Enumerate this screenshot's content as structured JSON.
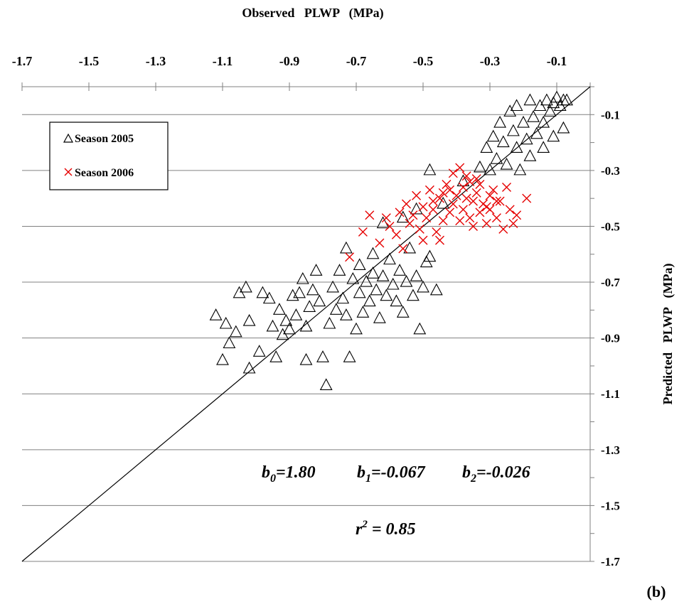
{
  "chart_data": {
    "type": "scatter",
    "xlabel": "Observed   PLWP   (MPa)",
    "ylabel": "Predicted   PLWP   (MPa)",
    "panel_label": "(b)",
    "xlim": [
      -1.7,
      0
    ],
    "ylim": [
      -1.7,
      0
    ],
    "x_ticks": [
      "-1.7",
      "-1.5",
      "-1.3",
      "-1.1",
      "-0.9",
      "-0.7",
      "-0.5",
      "-0.3",
      "-0.1"
    ],
    "y_ticks": [
      "-0.1",
      "-0.3",
      "-0.5",
      "-0.7",
      "-0.9",
      "-1.1",
      "-1.3",
      "-1.5",
      "-1.7"
    ],
    "x_axis_position": "top",
    "y_axis_position": "right",
    "grid": "horizontal",
    "legend_position": "top-left",
    "reference_line": "1:1",
    "annotations": {
      "b0": {
        "sym": "b",
        "sub": "0",
        "val": "=1.80"
      },
      "b1": {
        "sym": "b",
        "sub": "1",
        "val": "=-0.067"
      },
      "b2": {
        "sym": "b",
        "sub": "2",
        "val": "=-0.026"
      },
      "r2": {
        "sym": "r",
        "sup": "2",
        "val": " = 0.85"
      }
    },
    "series": [
      {
        "name": "Season 2005",
        "marker": "triangle-open",
        "color": "#000000",
        "points": [
          [
            -1.12,
            -0.82
          ],
          [
            -1.1,
            -0.98
          ],
          [
            -1.09,
            -0.85
          ],
          [
            -1.08,
            -0.92
          ],
          [
            -1.06,
            -0.88
          ],
          [
            -1.05,
            -0.74
          ],
          [
            -1.03,
            -0.72
          ],
          [
            -1.02,
            -0.84
          ],
          [
            -1.02,
            -1.01
          ],
          [
            -0.99,
            -0.95
          ],
          [
            -0.98,
            -0.74
          ],
          [
            -0.96,
            -0.76
          ],
          [
            -0.95,
            -0.86
          ],
          [
            -0.94,
            -0.97
          ],
          [
            -0.93,
            -0.8
          ],
          [
            -0.92,
            -0.89
          ],
          [
            -0.91,
            -0.84
          ],
          [
            -0.9,
            -0.87
          ],
          [
            -0.89,
            -0.75
          ],
          [
            -0.88,
            -0.82
          ],
          [
            -0.87,
            -0.74
          ],
          [
            -0.86,
            -0.69
          ],
          [
            -0.85,
            -0.86
          ],
          [
            -0.85,
            -0.98
          ],
          [
            -0.84,
            -0.79
          ],
          [
            -0.83,
            -0.73
          ],
          [
            -0.82,
            -0.66
          ],
          [
            -0.81,
            -0.77
          ],
          [
            -0.8,
            -0.97
          ],
          [
            -0.79,
            -1.07
          ],
          [
            -0.78,
            -0.85
          ],
          [
            -0.77,
            -0.72
          ],
          [
            -0.76,
            -0.8
          ],
          [
            -0.75,
            -0.66
          ],
          [
            -0.74,
            -0.76
          ],
          [
            -0.73,
            -0.82
          ],
          [
            -0.73,
            -0.58
          ],
          [
            -0.72,
            -0.97
          ],
          [
            -0.71,
            -0.69
          ],
          [
            -0.7,
            -0.87
          ],
          [
            -0.69,
            -0.74
          ],
          [
            -0.69,
            -0.64
          ],
          [
            -0.68,
            -0.81
          ],
          [
            -0.67,
            -0.7
          ],
          [
            -0.66,
            -0.77
          ],
          [
            -0.65,
            -0.6
          ],
          [
            -0.65,
            -0.67
          ],
          [
            -0.64,
            -0.73
          ],
          [
            -0.63,
            -0.83
          ],
          [
            -0.62,
            -0.68
          ],
          [
            -0.61,
            -0.75
          ],
          [
            -0.6,
            -0.62
          ],
          [
            -0.59,
            -0.71
          ],
          [
            -0.58,
            -0.77
          ],
          [
            -0.57,
            -0.66
          ],
          [
            -0.56,
            -0.81
          ],
          [
            -0.55,
            -0.7
          ],
          [
            -0.54,
            -0.58
          ],
          [
            -0.53,
            -0.75
          ],
          [
            -0.52,
            -0.68
          ],
          [
            -0.51,
            -0.87
          ],
          [
            -0.5,
            -0.72
          ],
          [
            -0.49,
            -0.63
          ],
          [
            -0.48,
            -0.61
          ],
          [
            -0.46,
            -0.73
          ],
          [
            -0.62,
            -0.49
          ],
          [
            -0.56,
            -0.47
          ],
          [
            -0.52,
            -0.44
          ],
          [
            -0.48,
            -0.3
          ],
          [
            -0.44,
            -0.42
          ],
          [
            -0.38,
            -0.34
          ],
          [
            -0.33,
            -0.29
          ],
          [
            -0.31,
            -0.22
          ],
          [
            -0.3,
            -0.3
          ],
          [
            -0.29,
            -0.18
          ],
          [
            -0.28,
            -0.26
          ],
          [
            -0.27,
            -0.13
          ],
          [
            -0.26,
            -0.2
          ],
          [
            -0.25,
            -0.28
          ],
          [
            -0.24,
            -0.09
          ],
          [
            -0.23,
            -0.16
          ],
          [
            -0.22,
            -0.22
          ],
          [
            -0.22,
            -0.07
          ],
          [
            -0.21,
            -0.3
          ],
          [
            -0.2,
            -0.13
          ],
          [
            -0.19,
            -0.19
          ],
          [
            -0.18,
            -0.05
          ],
          [
            -0.18,
            -0.25
          ],
          [
            -0.17,
            -0.11
          ],
          [
            -0.16,
            -0.17
          ],
          [
            -0.15,
            -0.07
          ],
          [
            -0.14,
            -0.22
          ],
          [
            -0.14,
            -0.13
          ],
          [
            -0.13,
            -0.05
          ],
          [
            -0.12,
            -0.09
          ],
          [
            -0.11,
            -0.18
          ],
          [
            -0.11,
            -0.06
          ],
          [
            -0.1,
            -0.04
          ],
          [
            -0.09,
            -0.07
          ],
          [
            -0.08,
            -0.05
          ],
          [
            -0.08,
            -0.15
          ],
          [
            -0.07,
            -0.05
          ]
        ]
      },
      {
        "name": "Season 2006",
        "marker": "x",
        "color": "#e60000",
        "points": [
          [
            -0.72,
            -0.61
          ],
          [
            -0.68,
            -0.52
          ],
          [
            -0.66,
            -0.46
          ],
          [
            -0.63,
            -0.56
          ],
          [
            -0.61,
            -0.47
          ],
          [
            -0.6,
            -0.5
          ],
          [
            -0.58,
            -0.53
          ],
          [
            -0.57,
            -0.45
          ],
          [
            -0.56,
            -0.58
          ],
          [
            -0.55,
            -0.42
          ],
          [
            -0.54,
            -0.49
          ],
          [
            -0.53,
            -0.46
          ],
          [
            -0.52,
            -0.39
          ],
          [
            -0.51,
            -0.51
          ],
          [
            -0.5,
            -0.43
          ],
          [
            -0.49,
            -0.47
          ],
          [
            -0.48,
            -0.37
          ],
          [
            -0.47,
            -0.44
          ],
          [
            -0.46,
            -0.52
          ],
          [
            -0.45,
            -0.4
          ],
          [
            -0.44,
            -0.48
          ],
          [
            -0.43,
            -0.35
          ],
          [
            -0.42,
            -0.45
          ],
          [
            -0.41,
            -0.31
          ],
          [
            -0.41,
            -0.42
          ],
          [
            -0.4,
            -0.39
          ],
          [
            -0.39,
            -0.48
          ],
          [
            -0.38,
            -0.36
          ],
          [
            -0.38,
            -0.44
          ],
          [
            -0.37,
            -0.4
          ],
          [
            -0.36,
            -0.34
          ],
          [
            -0.36,
            -0.47
          ],
          [
            -0.35,
            -0.41
          ],
          [
            -0.34,
            -0.38
          ],
          [
            -0.33,
            -0.45
          ],
          [
            -0.33,
            -0.35
          ],
          [
            -0.32,
            -0.42
          ],
          [
            -0.31,
            -0.49
          ],
          [
            -0.3,
            -0.39
          ],
          [
            -0.3,
            -0.44
          ],
          [
            -0.29,
            -0.37
          ],
          [
            -0.28,
            -0.47
          ],
          [
            -0.27,
            -0.41
          ],
          [
            -0.26,
            -0.51
          ],
          [
            -0.25,
            -0.36
          ],
          [
            -0.24,
            -0.44
          ],
          [
            -0.23,
            -0.49
          ],
          [
            -0.22,
            -0.46
          ],
          [
            -0.19,
            -0.4
          ],
          [
            -0.39,
            -0.29
          ],
          [
            -0.37,
            -0.32
          ],
          [
            -0.42,
            -0.37
          ],
          [
            -0.45,
            -0.55
          ],
          [
            -0.5,
            -0.55
          ],
          [
            -0.47,
            -0.41
          ],
          [
            -0.44,
            -0.38
          ],
          [
            -0.35,
            -0.5
          ],
          [
            -0.31,
            -0.43
          ],
          [
            -0.28,
            -0.41
          ],
          [
            -0.34,
            -0.33
          ]
        ]
      }
    ]
  }
}
